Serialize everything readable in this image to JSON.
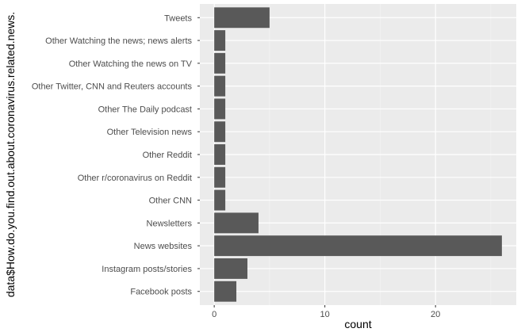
{
  "chart_data": {
    "type": "bar",
    "orientation": "horizontal",
    "xlabel": "count",
    "ylabel": "data$How.do.you.find.out.about.coronavirus.related.news.",
    "categories": [
      "Facebook posts",
      "Instagram posts/stories",
      "News websites",
      "Newsletters",
      "Other CNN",
      "Other r/coronavirus on Reddit",
      "Other Reddit",
      "Other Television news",
      "Other The Daily podcast",
      "Other Twitter, CNN and Reuters accounts",
      "Other Watching the news on TV",
      "Other Watching the news; news alerts",
      "Tweets"
    ],
    "values": [
      2,
      3,
      26,
      4,
      1,
      1,
      1,
      1,
      1,
      1,
      1,
      1,
      5
    ],
    "xlim": [
      -1.3,
      27.3
    ],
    "xticks": [
      0,
      10,
      20
    ],
    "grid": true,
    "colors": {
      "bar": "#595959",
      "panel": "#ebebeb",
      "grid_major": "#ffffff",
      "grid_minor": "#f4f4f4"
    }
  }
}
